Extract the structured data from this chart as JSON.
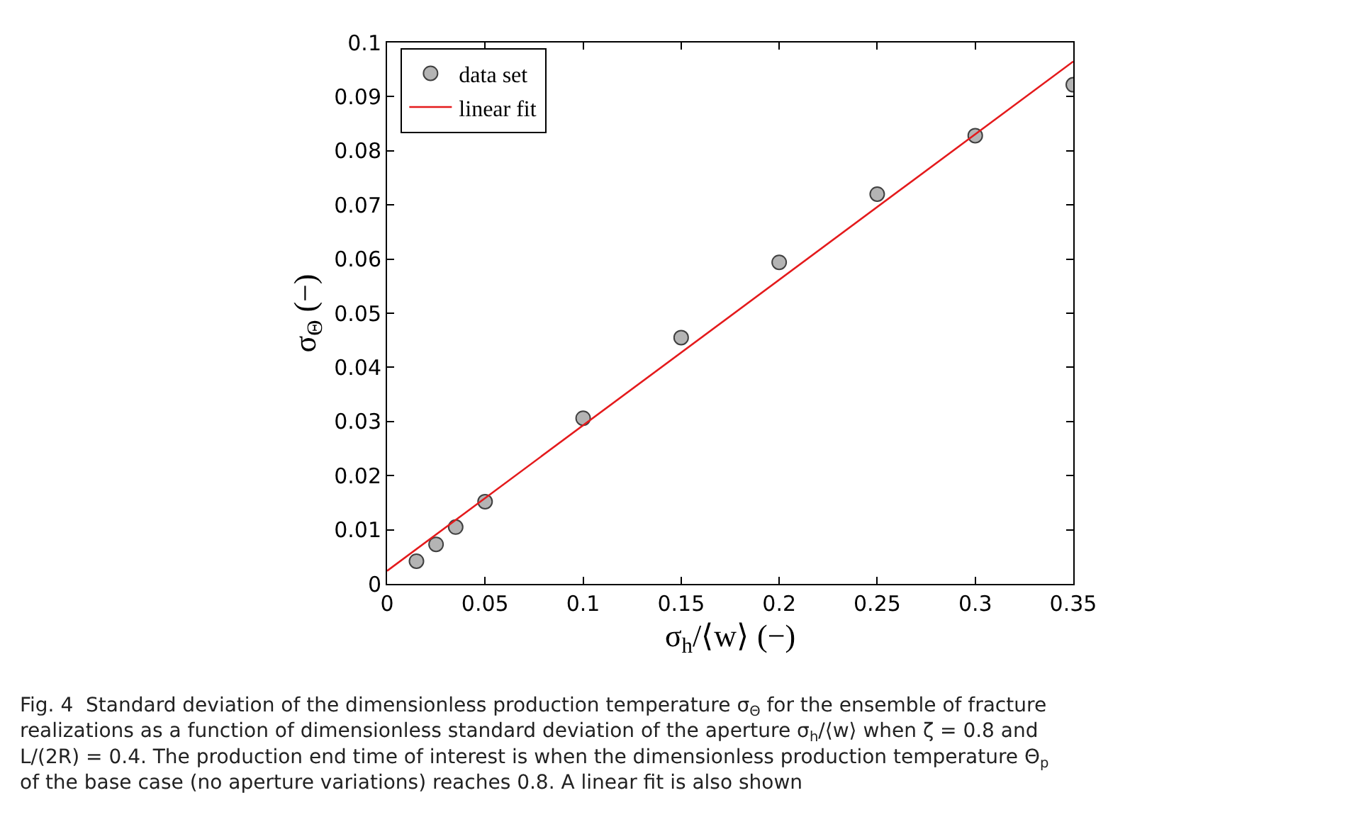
{
  "chart_data": {
    "type": "scatter",
    "xlabel": "σ$_{h}$/⟨w⟩ (−)",
    "ylabel": "σ$_{Θ}$ (−)",
    "xlim": [
      0,
      0.35
    ],
    "xticks": [
      0,
      0.05,
      0.1,
      0.15,
      0.2,
      0.25,
      0.3,
      0.35
    ],
    "ylim": [
      0,
      0.1
    ],
    "yticks": [
      0,
      0.01,
      0.02,
      0.03,
      0.04,
      0.05,
      0.06,
      0.07,
      0.08,
      0.09,
      0.1
    ],
    "legend": "top left",
    "series": [
      {
        "name": "data set",
        "marker": "circle",
        "color": "#b4b4b4",
        "x": [
          0.015,
          0.025,
          0.035,
          0.05,
          0.1,
          0.15,
          0.2,
          0.25,
          0.3,
          0.35
        ],
        "values": [
          0.0042,
          0.0073,
          0.0105,
          0.0152,
          0.0306,
          0.0455,
          0.0594,
          0.072,
          0.0828,
          0.0922
        ]
      },
      {
        "name": "linear fit",
        "type": "line",
        "color": "#e41a1c",
        "line_style": "solid",
        "x": [
          0,
          0.35
        ],
        "values": [
          0.0024,
          0.0965
        ]
      }
    ],
    "annotations": [
      "Fig. 4  Standard deviation of the dimensionless production temperature σ$_{Θ}$ for the ensemble of fracture realizations as a function of dimensionless standard deviation of the aperture σ$_{h}$/⟨w⟩ when ζ = 0.8 and L/(2R) = 0.4. The production end time of interest is when the dimensionless production temperature Θ$_{p}$ of the base case (no aperture variations) reaches 0.8. A linear fit is also shown"
    ]
  }
}
